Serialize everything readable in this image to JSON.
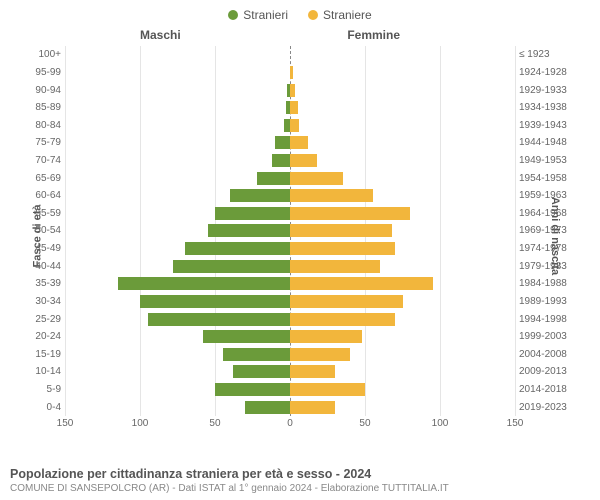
{
  "chart": {
    "type": "population-pyramid",
    "legend": [
      {
        "label": "Stranieri",
        "color": "#6b9b3a"
      },
      {
        "label": "Straniere",
        "color": "#f2b63c"
      }
    ],
    "col_headers": {
      "left": "Maschi",
      "right": "Femmine"
    },
    "y_axis_left_label": "Fasce di età",
    "y_axis_right_label": "Anni di nascita",
    "x_ticks": [
      150,
      100,
      50,
      0,
      50,
      100,
      150
    ],
    "xmax": 150,
    "bar_colors": {
      "male": "#6b9b3a",
      "female": "#f2b63c"
    },
    "background_color": "#ffffff",
    "grid_color": "#e5e5e5",
    "center_line_color": "#888888",
    "rows": [
      {
        "age": "100+",
        "birth": "≤ 1923",
        "m": 0,
        "f": 0
      },
      {
        "age": "95-99",
        "birth": "1924-1928",
        "m": 0,
        "f": 2
      },
      {
        "age": "90-94",
        "birth": "1929-1933",
        "m": 2,
        "f": 3
      },
      {
        "age": "85-89",
        "birth": "1934-1938",
        "m": 3,
        "f": 5
      },
      {
        "age": "80-84",
        "birth": "1939-1943",
        "m": 4,
        "f": 6
      },
      {
        "age": "75-79",
        "birth": "1944-1948",
        "m": 10,
        "f": 12
      },
      {
        "age": "70-74",
        "birth": "1949-1953",
        "m": 12,
        "f": 18
      },
      {
        "age": "65-69",
        "birth": "1954-1958",
        "m": 22,
        "f": 35
      },
      {
        "age": "60-64",
        "birth": "1959-1963",
        "m": 40,
        "f": 55
      },
      {
        "age": "55-59",
        "birth": "1964-1968",
        "m": 50,
        "f": 80
      },
      {
        "age": "50-54",
        "birth": "1969-1973",
        "m": 55,
        "f": 68
      },
      {
        "age": "45-49",
        "birth": "1974-1978",
        "m": 70,
        "f": 70
      },
      {
        "age": "40-44",
        "birth": "1979-1983",
        "m": 78,
        "f": 60
      },
      {
        "age": "35-39",
        "birth": "1984-1988",
        "m": 115,
        "f": 95
      },
      {
        "age": "30-34",
        "birth": "1989-1993",
        "m": 100,
        "f": 75
      },
      {
        "age": "25-29",
        "birth": "1994-1998",
        "m": 95,
        "f": 70
      },
      {
        "age": "20-24",
        "birth": "1999-2003",
        "m": 58,
        "f": 48
      },
      {
        "age": "15-19",
        "birth": "2004-2008",
        "m": 45,
        "f": 40
      },
      {
        "age": "10-14",
        "birth": "2009-2013",
        "m": 38,
        "f": 30
      },
      {
        "age": "5-9",
        "birth": "2014-2018",
        "m": 50,
        "f": 50
      },
      {
        "age": "0-4",
        "birth": "2019-2023",
        "m": 30,
        "f": 30
      }
    ]
  },
  "footer": {
    "title": "Popolazione per cittadinanza straniera per età e sesso - 2024",
    "subtitle": "COMUNE DI SANSEPOLCRO (AR) - Dati ISTAT al 1° gennaio 2024 - Elaborazione TUTTITALIA.IT"
  }
}
